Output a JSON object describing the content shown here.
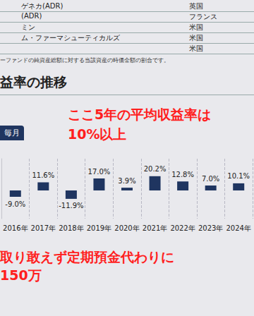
{
  "document": {
    "table_rows": [
      [
        "ゲネカ(ADR)",
        "英国"
      ],
      [
        "(ADR)",
        "フランス"
      ],
      [
        "ミン",
        "米国"
      ],
      [
        "ム・ファーマシューティカルズ",
        "米国"
      ],
      [
        "",
        "米国"
      ]
    ],
    "note": "ーファンドの純資産総額に対する当該資産の時価金額の割合です。",
    "heading": "益率の推移",
    "tab": "毎月",
    "annotations": [
      [
        "ここ5年の平均収益率は",
        "10%以上"
      ],
      [
        "取り敢えず定期預金代わりに",
        "150万"
      ]
    ]
  },
  "chart_data": {
    "type": "bar",
    "categories": [
      "2016年",
      "2017年",
      "2018年",
      "2019年",
      "2020年",
      "2021年",
      "2022年",
      "2023年",
      "2024年"
    ],
    "values": [
      -9.0,
      11.6,
      -11.9,
      17.0,
      3.9,
      20.2,
      12.8,
      7.0,
      10.1
    ],
    "value_labels": [
      "-9.0%",
      "11.6%",
      "-11.9%",
      "17.0%",
      "3.9%",
      "20.2%",
      "12.8%",
      "7.0%",
      "10.1%"
    ],
    "color": "#1f3560",
    "ylim": [
      -40,
      45
    ],
    "grid": true,
    "data_labels": true,
    "tick_labels": "x"
  }
}
